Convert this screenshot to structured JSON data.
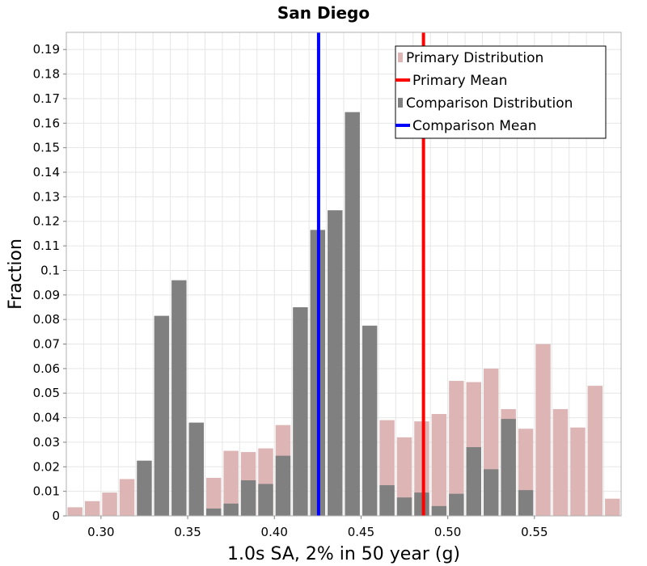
{
  "chart_data": {
    "type": "bar",
    "title": "San Diego",
    "xlabel": "1.0s SA, 2% in 50 year (g)",
    "ylabel": "Fraction",
    "xlim": [
      0.28,
      0.6
    ],
    "ylim": [
      0,
      0.197
    ],
    "bin_width": 0.01,
    "grid": true,
    "legend_position": "top-right",
    "x_ticks": [
      "0.30",
      "0.35",
      "0.40",
      "0.45",
      "0.50",
      "0.55"
    ],
    "x_tick_values": [
      0.3,
      0.35,
      0.4,
      0.45,
      0.5,
      0.55
    ],
    "y_ticks": [
      "0",
      "0.01",
      "0.02",
      "0.03",
      "0.04",
      "0.05",
      "0.06",
      "0.07",
      "0.08",
      "0.09",
      "0.1",
      "0.11",
      "0.12",
      "0.13",
      "0.14",
      "0.15",
      "0.16",
      "0.17",
      "0.18",
      "0.19"
    ],
    "y_tick_values": [
      0,
      0.01,
      0.02,
      0.03,
      0.04,
      0.05,
      0.06,
      0.07,
      0.08,
      0.09,
      0.1,
      0.11,
      0.12,
      0.13,
      0.14,
      0.15,
      0.16,
      0.17,
      0.18,
      0.19
    ],
    "series": [
      {
        "name": "Primary Distribution",
        "kind": "histogram",
        "color": "#deb5b5",
        "bins": [
          {
            "x": 0.285,
            "value": 0.0035
          },
          {
            "x": 0.295,
            "value": 0.006
          },
          {
            "x": 0.305,
            "value": 0.0095
          },
          {
            "x": 0.315,
            "value": 0.015
          },
          {
            "x": 0.365,
            "value": 0.0155
          },
          {
            "x": 0.375,
            "value": 0.0265
          },
          {
            "x": 0.385,
            "value": 0.026
          },
          {
            "x": 0.395,
            "value": 0.0275
          },
          {
            "x": 0.405,
            "value": 0.037
          },
          {
            "x": 0.465,
            "value": 0.039
          },
          {
            "x": 0.475,
            "value": 0.032
          },
          {
            "x": 0.485,
            "value": 0.0385
          },
          {
            "x": 0.495,
            "value": 0.0415
          },
          {
            "x": 0.505,
            "value": 0.055
          },
          {
            "x": 0.515,
            "value": 0.0545
          },
          {
            "x": 0.525,
            "value": 0.06
          },
          {
            "x": 0.535,
            "value": 0.0435
          },
          {
            "x": 0.545,
            "value": 0.0355
          },
          {
            "x": 0.555,
            "value": 0.07
          },
          {
            "x": 0.565,
            "value": 0.0435
          },
          {
            "x": 0.575,
            "value": 0.036
          },
          {
            "x": 0.585,
            "value": 0.053
          },
          {
            "x": 0.595,
            "value": 0.007
          }
        ]
      },
      {
        "name": "Comparison Distribution",
        "kind": "histogram",
        "color": "#808080",
        "bins": [
          {
            "x": 0.325,
            "value": 0.0225
          },
          {
            "x": 0.335,
            "value": 0.0815
          },
          {
            "x": 0.345,
            "value": 0.096
          },
          {
            "x": 0.355,
            "value": 0.038
          },
          {
            "x": 0.365,
            "value": 0.003
          },
          {
            "x": 0.375,
            "value": 0.005
          },
          {
            "x": 0.385,
            "value": 0.0145
          },
          {
            "x": 0.395,
            "value": 0.013
          },
          {
            "x": 0.405,
            "value": 0.0245
          },
          {
            "x": 0.415,
            "value": 0.085
          },
          {
            "x": 0.425,
            "value": 0.1165
          },
          {
            "x": 0.435,
            "value": 0.1245
          },
          {
            "x": 0.445,
            "value": 0.1645
          },
          {
            "x": 0.455,
            "value": 0.0775
          },
          {
            "x": 0.465,
            "value": 0.0125
          },
          {
            "x": 0.475,
            "value": 0.0075
          },
          {
            "x": 0.485,
            "value": 0.0095
          },
          {
            "x": 0.495,
            "value": 0.004
          },
          {
            "x": 0.505,
            "value": 0.009
          },
          {
            "x": 0.515,
            "value": 0.028
          },
          {
            "x": 0.525,
            "value": 0.019
          },
          {
            "x": 0.535,
            "value": 0.0395
          },
          {
            "x": 0.545,
            "value": 0.0105
          }
        ]
      },
      {
        "name": "Primary Mean",
        "kind": "vline",
        "color": "#ff0000",
        "x": 0.486
      },
      {
        "name": "Comparison Mean",
        "kind": "vline",
        "color": "#0000ff",
        "x": 0.4255
      }
    ],
    "legend_order": [
      "Primary Distribution",
      "Primary Mean",
      "Comparison Distribution",
      "Comparison Mean"
    ]
  }
}
